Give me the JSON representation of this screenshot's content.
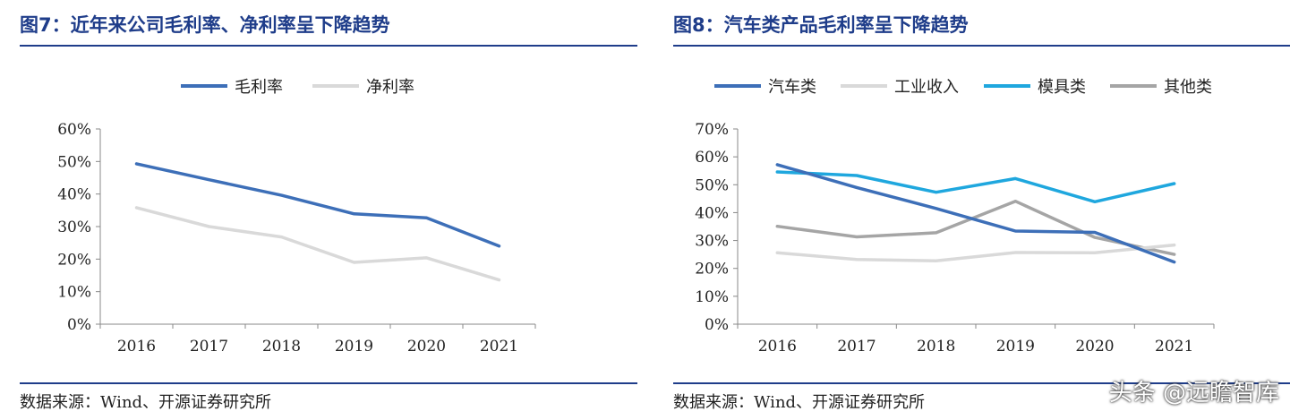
{
  "watermark": "头条 @远瞻智库",
  "chart_data": [
    {
      "type": "line",
      "title": "图7：近年来公司毛利率、净利率呈下降趋势",
      "source": "数据来源：Wind、开源证券研究所",
      "categories": [
        "2016",
        "2017",
        "2018",
        "2019",
        "2020",
        "2021"
      ],
      "y_ticks": [
        "0%",
        "10%",
        "20%",
        "30%",
        "40%",
        "50%",
        "60%"
      ],
      "ylim": [
        0,
        60
      ],
      "legend_position": "top",
      "series": [
        {
          "name": "毛利率",
          "color": "#3d6fb8",
          "values": [
            49.3,
            44.4,
            39.6,
            33.9,
            32.7,
            24.0
          ]
        },
        {
          "name": "净利率",
          "color": "#d9d9d9",
          "values": [
            35.8,
            30.0,
            26.8,
            19.0,
            20.4,
            13.6
          ]
        }
      ]
    },
    {
      "type": "line",
      "title": "图8：汽车类产品毛利率呈下降趋势",
      "source": "数据来源：Wind、开源证券研究所",
      "categories": [
        "2016",
        "2017",
        "2018",
        "2019",
        "2020",
        "2021"
      ],
      "y_ticks": [
        "0%",
        "10%",
        "20%",
        "30%",
        "40%",
        "50%",
        "60%",
        "70%"
      ],
      "ylim": [
        0,
        70
      ],
      "legend_position": "top",
      "series": [
        {
          "name": "汽车类",
          "color": "#3d6fb8",
          "values": [
            57.2,
            49.0,
            41.5,
            33.4,
            32.9,
            22.3
          ]
        },
        {
          "name": "工业收入",
          "color": "#d9d9d9",
          "values": [
            25.6,
            23.2,
            22.7,
            25.7,
            25.6,
            28.4
          ]
        },
        {
          "name": "模具类",
          "color": "#1fa7de",
          "values": [
            54.6,
            53.3,
            47.3,
            52.2,
            43.9,
            50.4
          ]
        },
        {
          "name": "其他类",
          "color": "#a5a5a5",
          "values": [
            35.1,
            31.3,
            32.8,
            44.1,
            31.1,
            25.0
          ]
        }
      ]
    }
  ]
}
